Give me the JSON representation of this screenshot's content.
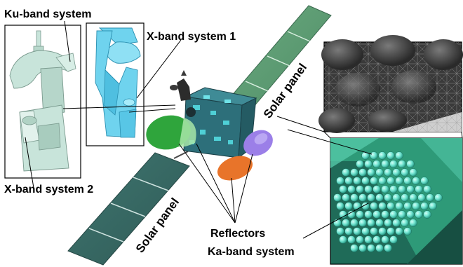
{
  "labels": {
    "ku_band_system": "Ku-band system",
    "x_band_system_1": "X-band system 1",
    "x_band_system_2": "X-band system 2",
    "solar_panel_upper": "Solar panel",
    "solar_panel_lower": "Solar panel",
    "reflectors": "Reflectors",
    "ka_band_system": "Ka-band system"
  },
  "colors": {
    "solar_panel_upper": "#5e9e74",
    "solar_panel_lower": "#3f6e68",
    "satellite_body": "#2d6f7a",
    "x_band_model_1": "#6fd3ee",
    "ku_x_band_model": "#c8e4da",
    "reflector_green": "#2fa53c",
    "reflector_orange": "#e8742a",
    "reflector_purple": "#9b7fe8",
    "ka_band_panel": "#2e9a78",
    "ka_band_elements": "#6fe3cf",
    "mesh_background": "#3a3a3a"
  }
}
